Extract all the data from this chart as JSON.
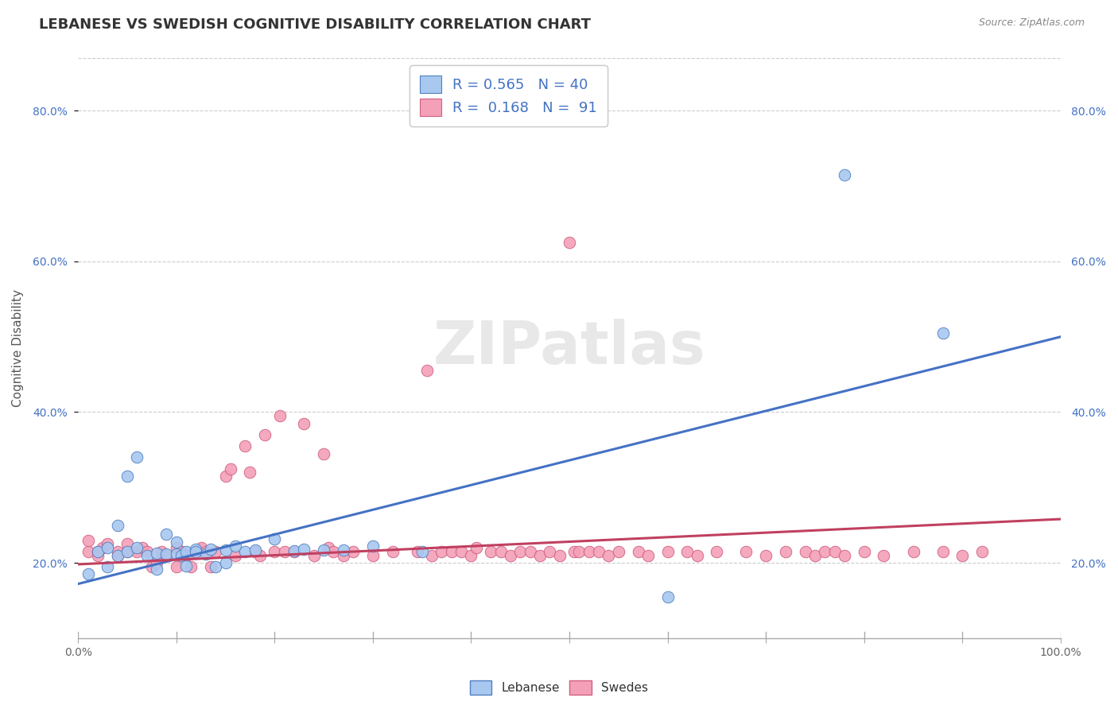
{
  "title": "LEBANESE VS SWEDISH COGNITIVE DISABILITY CORRELATION CHART",
  "source": "Source: ZipAtlas.com",
  "ylabel": "Cognitive Disability",
  "xlim": [
    0,
    1.0
  ],
  "ylim": [
    0.1,
    0.87
  ],
  "xticks": [
    0.0,
    0.1,
    0.2,
    0.3,
    0.4,
    0.5,
    0.6,
    0.7,
    0.8,
    0.9,
    1.0
  ],
  "xtick_labels": [
    "0.0%",
    "",
    "",
    "",
    "",
    "",
    "",
    "",
    "",
    "",
    "100.0%"
  ],
  "yticks": [
    0.2,
    0.4,
    0.6,
    0.8
  ],
  "ytick_labels": [
    "20.0%",
    "40.0%",
    "60.0%",
    "80.0%"
  ],
  "blue_R": "0.565",
  "blue_N": "40",
  "pink_R": "0.168",
  "pink_N": "91",
  "blue_fill": "#A8C8F0",
  "pink_fill": "#F4A0B8",
  "blue_edge": "#5080C0",
  "pink_edge": "#D06080",
  "blue_line": "#4472C4",
  "pink_line": "#C04060",
  "blue_scatter_x": [
    0.01,
    0.02,
    0.03,
    0.03,
    0.04,
    0.04,
    0.05,
    0.05,
    0.06,
    0.06,
    0.07,
    0.08,
    0.08,
    0.09,
    0.09,
    0.1,
    0.1,
    0.105,
    0.11,
    0.11,
    0.12,
    0.12,
    0.13,
    0.135,
    0.14,
    0.15,
    0.15,
    0.16,
    0.17,
    0.18,
    0.2,
    0.22,
    0.23,
    0.25,
    0.27,
    0.3,
    0.35,
    0.6,
    0.78,
    0.88
  ],
  "blue_scatter_y": [
    0.185,
    0.215,
    0.22,
    0.195,
    0.25,
    0.21,
    0.315,
    0.215,
    0.34,
    0.22,
    0.21,
    0.192,
    0.213,
    0.212,
    0.238,
    0.212,
    0.228,
    0.21,
    0.215,
    0.196,
    0.218,
    0.215,
    0.212,
    0.218,
    0.195,
    0.2,
    0.217,
    0.222,
    0.215,
    0.217,
    0.232,
    0.216,
    0.218,
    0.217,
    0.217,
    0.222,
    0.215,
    0.155,
    0.715,
    0.505
  ],
  "pink_scatter_x": [
    0.01,
    0.01,
    0.02,
    0.02,
    0.025,
    0.03,
    0.04,
    0.04,
    0.05,
    0.05,
    0.06,
    0.065,
    0.07,
    0.075,
    0.08,
    0.085,
    0.09,
    0.1,
    0.1,
    0.105,
    0.11,
    0.115,
    0.12,
    0.125,
    0.13,
    0.135,
    0.14,
    0.15,
    0.155,
    0.16,
    0.17,
    0.175,
    0.18,
    0.185,
    0.19,
    0.2,
    0.205,
    0.21,
    0.22,
    0.23,
    0.24,
    0.25,
    0.255,
    0.26,
    0.27,
    0.28,
    0.3,
    0.32,
    0.345,
    0.355,
    0.36,
    0.37,
    0.38,
    0.39,
    0.4,
    0.405,
    0.42,
    0.43,
    0.44,
    0.45,
    0.46,
    0.47,
    0.48,
    0.49,
    0.5,
    0.505,
    0.51,
    0.52,
    0.53,
    0.54,
    0.55,
    0.57,
    0.58,
    0.6,
    0.62,
    0.63,
    0.65,
    0.68,
    0.7,
    0.72,
    0.74,
    0.75,
    0.76,
    0.77,
    0.78,
    0.8,
    0.82,
    0.85,
    0.88,
    0.9,
    0.92
  ],
  "pink_scatter_y": [
    0.215,
    0.23,
    0.215,
    0.21,
    0.22,
    0.225,
    0.21,
    0.215,
    0.215,
    0.225,
    0.215,
    0.22,
    0.215,
    0.195,
    0.2,
    0.215,
    0.21,
    0.195,
    0.22,
    0.215,
    0.21,
    0.195,
    0.215,
    0.22,
    0.215,
    0.195,
    0.215,
    0.315,
    0.325,
    0.21,
    0.355,
    0.32,
    0.215,
    0.21,
    0.37,
    0.215,
    0.395,
    0.215,
    0.215,
    0.385,
    0.21,
    0.345,
    0.22,
    0.215,
    0.21,
    0.215,
    0.21,
    0.215,
    0.215,
    0.455,
    0.21,
    0.215,
    0.215,
    0.215,
    0.21,
    0.22,
    0.215,
    0.215,
    0.21,
    0.215,
    0.215,
    0.21,
    0.215,
    0.21,
    0.625,
    0.215,
    0.215,
    0.215,
    0.215,
    0.21,
    0.215,
    0.215,
    0.21,
    0.215,
    0.215,
    0.21,
    0.215,
    0.215,
    0.21,
    0.215,
    0.215,
    0.21,
    0.215,
    0.215,
    0.21,
    0.215,
    0.21,
    0.215,
    0.215,
    0.21,
    0.215
  ],
  "blue_trend_x": [
    0.0,
    1.0
  ],
  "blue_trend_y": [
    0.172,
    0.5
  ],
  "pink_trend_x": [
    0.0,
    1.0
  ],
  "pink_trend_y": [
    0.198,
    0.258
  ],
  "watermark": "ZIPatlas",
  "bg_color": "#FFFFFF",
  "grid_color": "#CCCCCC",
  "title_fontsize": 13,
  "tick_fontsize": 10,
  "ylabel_fontsize": 11
}
